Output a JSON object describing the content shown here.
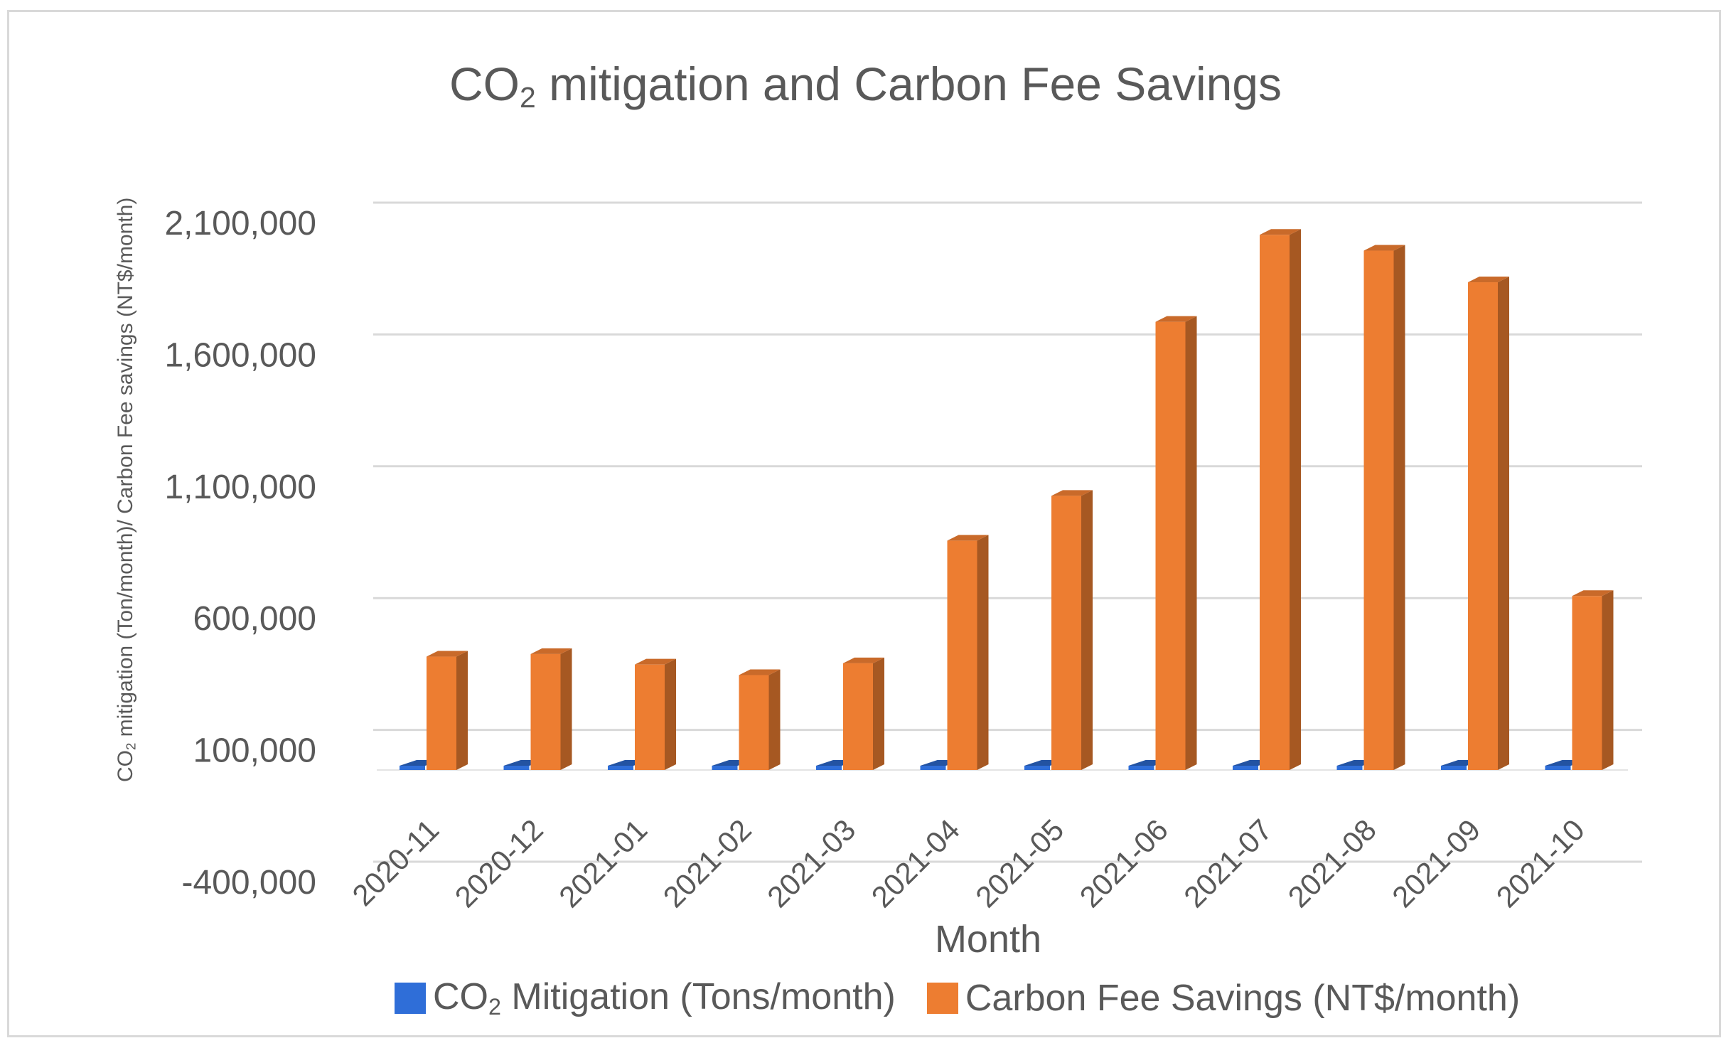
{
  "chart_data": {
    "type": "bar",
    "title": "CO2 mitigation and Carbon Fee Savings",
    "title_parts": {
      "pre": "CO",
      "sub": "2",
      "post": " mitigation and Carbon Fee Savings"
    },
    "xlabel": "Month",
    "ylabel": "CO2 mitigation (Ton/month)/ Carbon Fee savings (NT$/month)",
    "ylabel_parts": {
      "pre": "CO",
      "sub": "2",
      "post": " mitigation (Ton/month)/ Carbon Fee savings (NT$/month)"
    },
    "categories": [
      "2020-11",
      "2020-12",
      "2021-01",
      "2021-02",
      "2021-03",
      "2021-04",
      "2021-05",
      "2021-06",
      "2021-07",
      "2021-08",
      "2021-09",
      "2021-10"
    ],
    "series": [
      {
        "name": "CO2 Mitigation (Tons/month)",
        "name_parts": {
          "pre": "CO",
          "sub": "2",
          "post": " Mitigation (Tons/month)"
        },
        "color": "#2f6ed8",
        "values": [
          360,
          370,
          330,
          300,
          340,
          720,
          860,
          1410,
          1690,
          1640,
          1530,
          550
        ]
      },
      {
        "name": "Carbon Fee Savings (NT$/month)",
        "color": "#ed7d31",
        "values": [
          430000,
          440000,
          400000,
          360000,
          405000,
          870000,
          1040000,
          1700000,
          2030000,
          1970000,
          1850000,
          660000
        ]
      }
    ],
    "yticks": [
      -400000,
      100000,
      600000,
      1100000,
      1600000,
      2100000
    ],
    "ytick_labels": [
      "-400,000",
      "100,000",
      "600,000",
      "1,100,000",
      "1,600,000",
      "2,100,000"
    ],
    "ylim": [
      -400000,
      2100000
    ],
    "grid": true,
    "legend_position": "bottom"
  }
}
